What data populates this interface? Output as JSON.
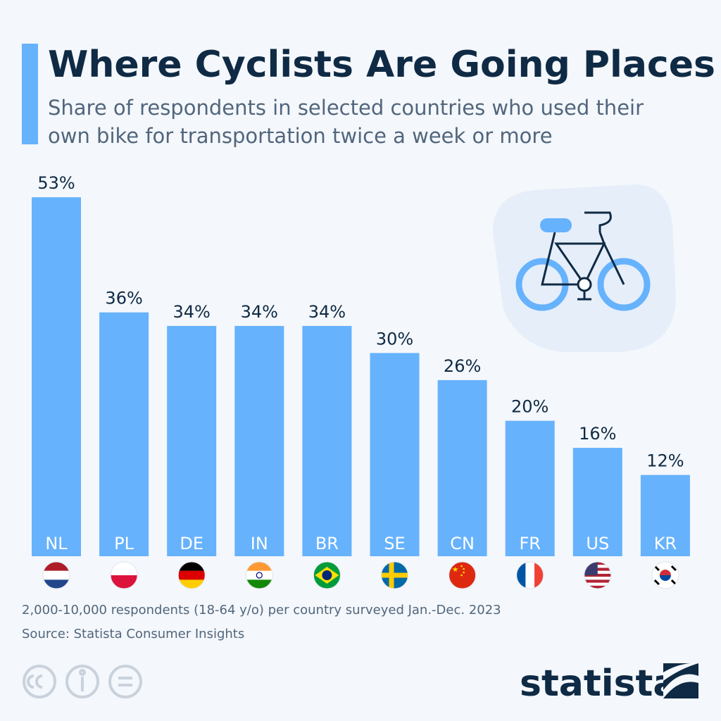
{
  "chart_data": {
    "type": "bar",
    "title": "Where Cyclists Are Going Places",
    "subtitle": [
      "Share of respondents in selected countries who used their",
      "own bike for transportation twice a week or more"
    ],
    "categories": [
      "NL",
      "PL",
      "DE",
      "IN",
      "BR",
      "SE",
      "CN",
      "FR",
      "US",
      "KR"
    ],
    "values": [
      53,
      36,
      34,
      34,
      34,
      30,
      26,
      20,
      16,
      12
    ],
    "value_labels": [
      "53%",
      "36%",
      "34%",
      "34%",
      "34%",
      "30%",
      "26%",
      "20%",
      "16%",
      "12%"
    ],
    "color": "#66b2fd",
    "note": "2,000-10,000 respondents (18-64 y/o) per country surveyed Jan.-Dec. 2023",
    "source": "Source: Statista Consumer Insights",
    "brand": "statista"
  }
}
